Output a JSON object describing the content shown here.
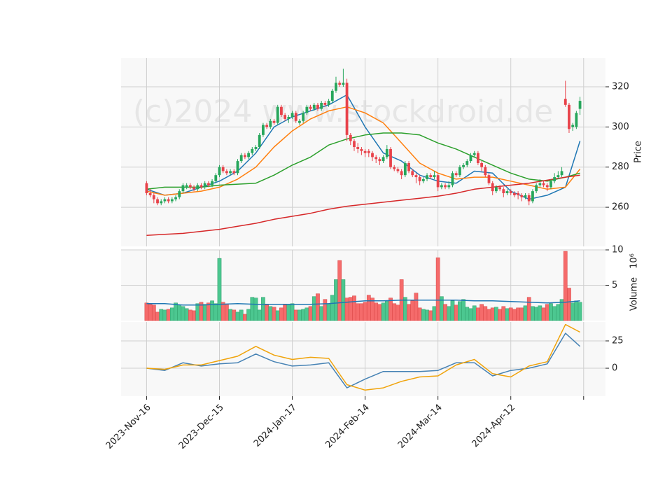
{
  "chart_data": {
    "type": "candlestick",
    "watermark": "(c)2024 www.stockdroid.de",
    "xlim": [
      -7,
      126
    ],
    "xticks": [
      {
        "value": 0,
        "label": "2023-Nov-16"
      },
      {
        "value": 20,
        "label": "2023-Dec-15"
      },
      {
        "value": 40,
        "label": "2024-Jan-17"
      },
      {
        "value": 60,
        "label": "2024-Feb-14"
      },
      {
        "value": 80,
        "label": "2024-Mar-14"
      },
      {
        "value": 100,
        "label": "2024-Apr-12"
      },
      {
        "value": 120,
        "label": null
      }
    ],
    "grid": true,
    "up_color": "#26a65b",
    "down_color": "#e8424a",
    "ylabel": "Price",
    "ylim": [
      240.5,
      334.3
    ],
    "yticks": [
      260,
      280,
      300,
      320
    ],
    "ohlc": [
      [
        272,
        273,
        266,
        267
      ],
      [
        267,
        269,
        265,
        266
      ],
      [
        266,
        267,
        262,
        264
      ],
      [
        264,
        265,
        261,
        262
      ],
      [
        262,
        264,
        261,
        263
      ],
      [
        263,
        265,
        262,
        264
      ],
      [
        264,
        265,
        262,
        263
      ],
      [
        263,
        265,
        262,
        264
      ],
      [
        264,
        266,
        263,
        265
      ],
      [
        265,
        269,
        264,
        268
      ],
      [
        268,
        272,
        267,
        271
      ],
      [
        270,
        272,
        269,
        271
      ],
      [
        271,
        272,
        269,
        270
      ],
      [
        270,
        271,
        268,
        269
      ],
      [
        269,
        272,
        268,
        271
      ],
      [
        271,
        272,
        269,
        270
      ],
      [
        270,
        273,
        269,
        272
      ],
      [
        272,
        273,
        270,
        271
      ],
      [
        271,
        274,
        270,
        273
      ],
      [
        273,
        277,
        272,
        276
      ],
      [
        276,
        281,
        275,
        280
      ],
      [
        280,
        281,
        277,
        278
      ],
      [
        278,
        279,
        276,
        277
      ],
      [
        277,
        279,
        276,
        278
      ],
      [
        278,
        279,
        276,
        277
      ],
      [
        277,
        284,
        276,
        283
      ],
      [
        283,
        287,
        282,
        286
      ],
      [
        286,
        287,
        284,
        285
      ],
      [
        285,
        288,
        284,
        287
      ],
      [
        287,
        290,
        286,
        289
      ],
      [
        289,
        291,
        288,
        290
      ],
      [
        290,
        297,
        289,
        296
      ],
      [
        296,
        302,
        295,
        301
      ],
      [
        301,
        302,
        299,
        300
      ],
      [
        300,
        304,
        299,
        303
      ],
      [
        303,
        304,
        301,
        302
      ],
      [
        302,
        311,
        301,
        310
      ],
      [
        310,
        311,
        305,
        306
      ],
      [
        306,
        307,
        303,
        304
      ],
      [
        304,
        306,
        302,
        305
      ],
      [
        305,
        308,
        304,
        307
      ],
      [
        307,
        308,
        302,
        303
      ],
      [
        302,
        304,
        301,
        303
      ],
      [
        303,
        308,
        302,
        307
      ],
      [
        307,
        311,
        306,
        310
      ],
      [
        310,
        311,
        308,
        309
      ],
      [
        309,
        312,
        308,
        311
      ],
      [
        311,
        312,
        308,
        309
      ],
      [
        309,
        313,
        308,
        312
      ],
      [
        312,
        313,
        310,
        311
      ],
      [
        311,
        314,
        310,
        313
      ],
      [
        313,
        319,
        312,
        318
      ],
      [
        318,
        325,
        317,
        322
      ],
      [
        322,
        323,
        320,
        321
      ],
      [
        321,
        329,
        320,
        322
      ],
      [
        322,
        324,
        293,
        296
      ],
      [
        296,
        297,
        291,
        293
      ],
      [
        293,
        294,
        288,
        290
      ],
      [
        290,
        292,
        287,
        289
      ],
      [
        289,
        290,
        286,
        288
      ],
      [
        288,
        289,
        285,
        287
      ],
      [
        288,
        289,
        285,
        287
      ],
      [
        287,
        288,
        283,
        285
      ],
      [
        285,
        286,
        282,
        284
      ],
      [
        284,
        285,
        281,
        283
      ],
      [
        283,
        286,
        282,
        285
      ],
      [
        285,
        291,
        284,
        289
      ],
      [
        289,
        290,
        279,
        280
      ],
      [
        280,
        281,
        278,
        279
      ],
      [
        279,
        280,
        277,
        278
      ],
      [
        278,
        279,
        274,
        276
      ],
      [
        276,
        283,
        275,
        282
      ],
      [
        282,
        283,
        277,
        278
      ],
      [
        278,
        279,
        275,
        276
      ],
      [
        276,
        277,
        272,
        275
      ],
      [
        275,
        276,
        271,
        273
      ],
      [
        273,
        275,
        272,
        274
      ],
      [
        274,
        277,
        273,
        276
      ],
      [
        276,
        277,
        274,
        275
      ],
      [
        275,
        278,
        274,
        276
      ],
      [
        276,
        277,
        268,
        270
      ],
      [
        270,
        272,
        269,
        271
      ],
      [
        271,
        272,
        269,
        270
      ],
      [
        270,
        273,
        269,
        271
      ],
      [
        271,
        278,
        270,
        277
      ],
      [
        277,
        278,
        275,
        276
      ],
      [
        276,
        281,
        275,
        280
      ],
      [
        280,
        282,
        279,
        281
      ],
      [
        281,
        284,
        280,
        283
      ],
      [
        283,
        287,
        282,
        286
      ],
      [
        286,
        288,
        285,
        287
      ],
      [
        287,
        288,
        281,
        282
      ],
      [
        282,
        283,
        278,
        280
      ],
      [
        280,
        281,
        275,
        276
      ],
      [
        276,
        277,
        271,
        272
      ],
      [
        272,
        273,
        266,
        268
      ],
      [
        268,
        271,
        267,
        270
      ],
      [
        270,
        271,
        268,
        269
      ],
      [
        269,
        270,
        265,
        267
      ],
      [
        267,
        269,
        266,
        268
      ],
      [
        268,
        269,
        266,
        267
      ],
      [
        267,
        268,
        265,
        266
      ],
      [
        267,
        268,
        264,
        266
      ],
      [
        266,
        267,
        263,
        265
      ],
      [
        265,
        267,
        264,
        266
      ],
      [
        266,
        267,
        261,
        263
      ],
      [
        263,
        269,
        262,
        268
      ],
      [
        268,
        272,
        267,
        271
      ],
      [
        271,
        274,
        270,
        272
      ],
      [
        272,
        273,
        270,
        271
      ],
      [
        271,
        272,
        268,
        270
      ],
      [
        270,
        274,
        269,
        273
      ],
      [
        273,
        277,
        272,
        275
      ],
      [
        275,
        278,
        274,
        276
      ],
      [
        276,
        280,
        275,
        278
      ],
      [
        314,
        323,
        310,
        311
      ],
      [
        311,
        312,
        297,
        299
      ],
      [
        300,
        302,
        298,
        301
      ],
      [
        300,
        308,
        299,
        307
      ],
      [
        309,
        315,
        306,
        313
      ]
    ],
    "line_x": [
      0,
      5,
      10,
      15,
      20,
      25,
      30,
      35,
      40,
      45,
      50,
      55,
      60,
      65,
      70,
      75,
      80,
      85,
      90,
      95,
      100,
      105,
      110,
      115,
      119
    ],
    "overlays": [
      {
        "color": "#1f77b4",
        "values": [
          269,
          266,
          267,
          270,
          273,
          278,
          287,
          300,
          305,
          308,
          311,
          316,
          300,
          287,
          283,
          276,
          273,
          272,
          278,
          277,
          268,
          264,
          266,
          270,
          293
        ]
      },
      {
        "color": "#ff7f0e",
        "values": [
          268,
          266,
          267,
          268,
          270,
          274,
          280,
          290,
          298,
          304,
          308,
          310,
          307,
          302,
          292,
          282,
          277,
          274,
          275,
          275,
          273,
          271,
          269,
          270,
          279
        ]
      },
      {
        "color": "#2ca02c",
        "values": [
          269,
          270,
          270,
          270,
          271,
          271.5,
          272,
          276,
          281,
          285,
          291,
          294,
          296,
          297,
          297,
          296,
          292,
          289,
          285,
          281,
          277,
          274,
          273,
          275,
          277
        ]
      },
      {
        "color": "#d62728",
        "values": [
          246,
          246.5,
          247,
          248,
          249,
          250.5,
          252,
          254,
          255.5,
          257,
          259,
          260.5,
          261.5,
          262.5,
          263.5,
          264.5,
          265.5,
          267,
          269,
          270,
          271,
          272,
          273.5,
          275,
          276
        ]
      }
    ],
    "volume": {
      "ylabel": "Volume",
      "scale_label": "10⁶",
      "ylim": [
        0,
        10
      ],
      "yticks": [
        5,
        10
      ],
      "up_color": "#4cc790",
      "down_color": "#f56b6b",
      "values": [
        2.5,
        2.3,
        2.2,
        1.2,
        1.6,
        1.5,
        1.6,
        1.8,
        2.5,
        2.2,
        2.0,
        1.7,
        1.5,
        1.4,
        2.4,
        2.6,
        2.3,
        2.5,
        2.8,
        2.4,
        8.8,
        2.6,
        2.3,
        1.6,
        1.5,
        1.2,
        1.5,
        0.9,
        1.6,
        3.3,
        3.2,
        1.5,
        3.3,
        2.2,
        2.0,
        1.9,
        1.4,
        1.8,
        2.2,
        2.3,
        2.4,
        1.5,
        1.5,
        1.6,
        1.8,
        2.0,
        3.4,
        3.8,
        2.0,
        3.0,
        2.4,
        3.6,
        5.8,
        8.5,
        5.8,
        3.2,
        3.3,
        3.5,
        2.4,
        2.4,
        2.6,
        3.6,
        3.2,
        2.5,
        2.3,
        2.5,
        2.8,
        3.2,
        2.4,
        2.2,
        5.8,
        3.3,
        2.3,
        2.8,
        3.9,
        1.8,
        1.6,
        1.5,
        1.4,
        2.0,
        8.9,
        3.4,
        2.3,
        2.0,
        2.8,
        2.2,
        2.7,
        3.0,
        1.9,
        1.7,
        2.1,
        1.8,
        2.3,
        2.0,
        1.6,
        1.8,
        1.9,
        1.6,
        2.0,
        1.7,
        1.8,
        1.6,
        1.8,
        1.8,
        2.1,
        3.3,
        2.0,
        1.9,
        2.1,
        1.8,
        2.3,
        2.4,
        2.0,
        2.3,
        3.0,
        9.8,
        4.6,
        2.5,
        2.8,
        2.6
      ],
      "ma": {
        "color": "#1f77b4",
        "values": [
          2.4,
          2.4,
          2.2,
          2.2,
          2.3,
          2.4,
          2.3,
          2.3,
          2.3,
          2.3,
          2.4,
          2.6,
          2.8,
          2.8,
          2.9,
          2.9,
          2.9,
          2.9,
          2.8,
          2.8,
          2.7,
          2.6,
          2.5,
          2.6,
          2.8
        ]
      }
    },
    "oscillator": {
      "ylim": [
        -25.6,
        42.3
      ],
      "yticks": [
        0,
        25
      ],
      "series": [
        {
          "color": "#4682b4",
          "values": [
            0,
            -2,
            5,
            2,
            4,
            5,
            13,
            6,
            2,
            3,
            5,
            -18,
            -10,
            -3,
            -3,
            -3,
            -2,
            5,
            5,
            -7,
            -2,
            0,
            4,
            32,
            20
          ]
        },
        {
          "color": "#f0a30a",
          "values": [
            0,
            -1,
            3,
            3,
            7,
            11,
            20,
            12,
            8,
            10,
            9,
            -15,
            -20,
            -18,
            -12,
            -8,
            -7,
            3,
            8,
            -5,
            -8,
            2,
            6,
            40,
            33
          ]
        }
      ]
    }
  }
}
